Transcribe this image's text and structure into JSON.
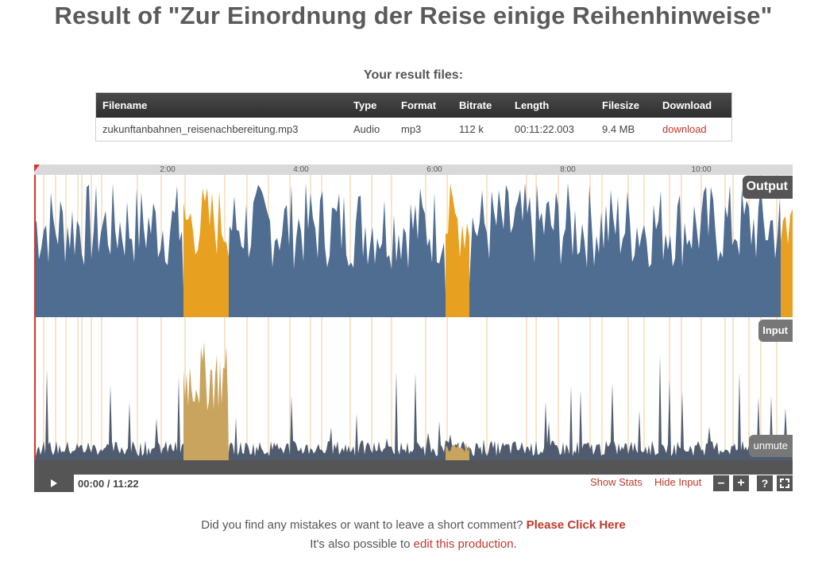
{
  "page": {
    "title": "Result of \"Zur Einordnung der Reise einige Reihenhinweise\"",
    "files_heading": "Your result files:"
  },
  "files_table": {
    "headers": [
      "Filename",
      "Type",
      "Format",
      "Bitrate",
      "Length",
      "Filesize",
      "Download"
    ],
    "rows": [
      {
        "filename": "zukunftanbahnen_reisenachbereitung.mp3",
        "type": "Audio",
        "format": "mp3",
        "bitrate": "112 k",
        "length": "00:11:22.003",
        "filesize": "9.4 MB",
        "download": "download"
      }
    ]
  },
  "player": {
    "ticks": [
      "2:00",
      "4:00",
      "6:00",
      "8:00",
      "10:00"
    ],
    "output_label": "Output",
    "input_label": "Input",
    "unmute_label": "unmute",
    "time_current": "00:00",
    "time_separator": " / ",
    "time_total": "11:22",
    "show_stats": "Show Stats",
    "hide_input": "Hide Input",
    "zoom_out_symbol": "–",
    "zoom_in_symbol": "+",
    "help_symbol": "?",
    "fullscreen_icon": "fullscreen-icon",
    "colors": {
      "speech": "#4f6c91",
      "music": "#e8a020",
      "music_input": "#c9a45e",
      "input_wave": "#4f5b6e",
      "markers": "#f5dcb8",
      "accent": "#c0392b"
    }
  },
  "footer": {
    "comment_text": "Did you find any mistakes or want to leave a short comment? ",
    "comment_link": "Please Click Here",
    "edit_text": "It's also possible to ",
    "edit_link": "edit this production",
    "edit_end": "."
  }
}
